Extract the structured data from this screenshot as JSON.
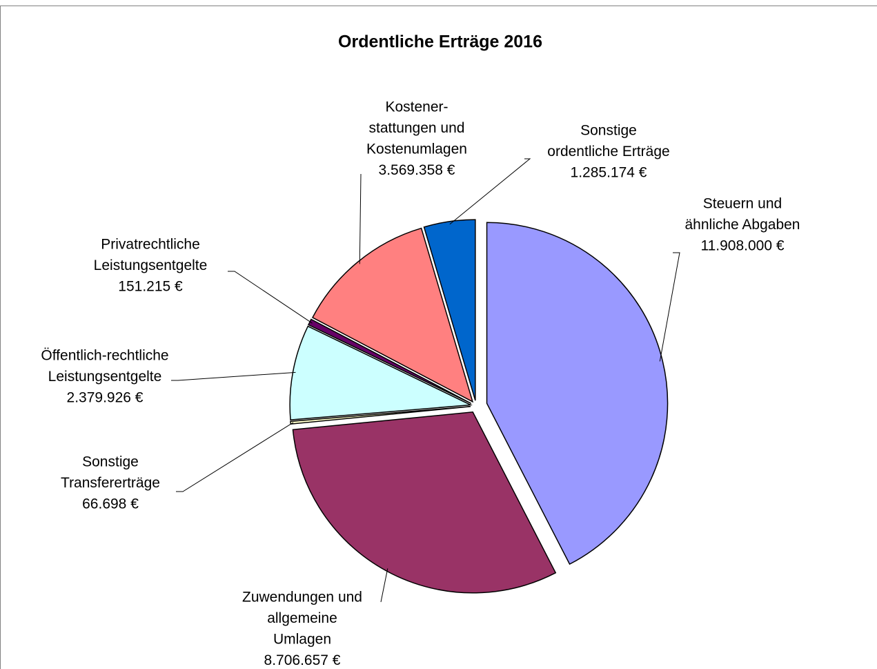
{
  "chart_data": {
    "type": "pie",
    "title": "Ordentliche Erträge 2016",
    "categories": [
      [
        "Steuern und",
        "ähnliche Abgaben"
      ],
      [
        "Zuwendungen und",
        "allgemeine",
        "Umlagen"
      ],
      [
        "Sonstige",
        "Transfererträge"
      ],
      [
        "Öffentlich-rechtliche",
        "Leistungsentgelte"
      ],
      [
        "Privatrechtliche",
        "Leistungsentgelte"
      ],
      [
        "Kostener-",
        "stattungen und",
        "Kostenumlagen"
      ],
      [
        "Sonstige",
        "ordentliche Erträge"
      ]
    ],
    "values": [
      11908000,
      8706657,
      66698,
      2379926,
      151215,
      3569358,
      1285174
    ],
    "value_labels": [
      "11.908.000 €",
      "8.706.657 €",
      "66.698 €",
      "2.379.926 €",
      "151.215 €",
      "3.569.358 €",
      "1.285.174 €"
    ],
    "colors": [
      "#9999ff",
      "#993366",
      "#ffffcc",
      "#ccffff",
      "#660066",
      "#ff8080",
      "#0066cc"
    ]
  }
}
